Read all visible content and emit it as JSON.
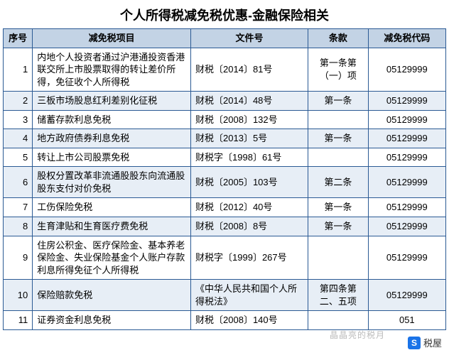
{
  "title": "个人所得税减免税优惠-金融保险相关",
  "title_fontsize": 18,
  "title_color": "#000000",
  "header_bg": "#c3d3e5",
  "row_alt_bg": "#e7eef6",
  "row_bg": "#ffffff",
  "border_color": "#2b5a94",
  "cell_fontsize": 13,
  "columns": [
    "序号",
    "减免税项目",
    "文件号",
    "条款",
    "减免税代码"
  ],
  "rows": [
    {
      "seq": "1",
      "item": "内地个人投资者通过沪港通投资香港联交所上市股票取得的转让差价所得，免征收个人所得税",
      "doc": "财税〔2014〕81号",
      "art": "第一条第（一）项",
      "code": "05129999"
    },
    {
      "seq": "2",
      "item": "三板市场股息红利差别化征税",
      "doc": "财税〔2014〕48号",
      "art": "第一条",
      "code": "05129999"
    },
    {
      "seq": "3",
      "item": "储蓄存款利息免税",
      "doc": "财税〔2008〕132号",
      "art": "",
      "code": "05129999"
    },
    {
      "seq": "4",
      "item": "地方政府债券利息免税",
      "doc": "财税〔2013〕5号",
      "art": "第一条",
      "code": "05129999"
    },
    {
      "seq": "5",
      "item": "转让上市公司股票免税",
      "doc": "财税字〔1998〕61号",
      "art": "",
      "code": "05129999"
    },
    {
      "seq": "6",
      "item": "股权分置改革非流通股股东向流通股股东支付对价免税",
      "doc": "财税〔2005〕103号",
      "art": "第二条",
      "code": "05129999"
    },
    {
      "seq": "7",
      "item": "工伤保险免税",
      "doc": "财税〔2012〕40号",
      "art": "第一条",
      "code": "05129999"
    },
    {
      "seq": "8",
      "item": "生育津贴和生育医疗费免税",
      "doc": "财税〔2008〕8号",
      "art": "第一条",
      "code": "05129999"
    },
    {
      "seq": "9",
      "item": "住房公积金、医疗保险金、基本养老保险金、失业保险基金个人账户存款利息所得免征个人所得税",
      "doc": "财税字〔1999〕267号",
      "art": "",
      "code": "05129999"
    },
    {
      "seq": "10",
      "item": "保险赔款免税",
      "doc": "《中华人民共和国个人所得税法》",
      "art": "第四条第二、五项",
      "code": "05129999"
    },
    {
      "seq": "11",
      "item": "证券资金利息免税",
      "doc": "财税〔2008〕140号",
      "art": "",
      "code": "051"
    }
  ],
  "watermark": {
    "icon_text": "S",
    "label": "税屋",
    "faint": "晶晶亮的税月"
  }
}
